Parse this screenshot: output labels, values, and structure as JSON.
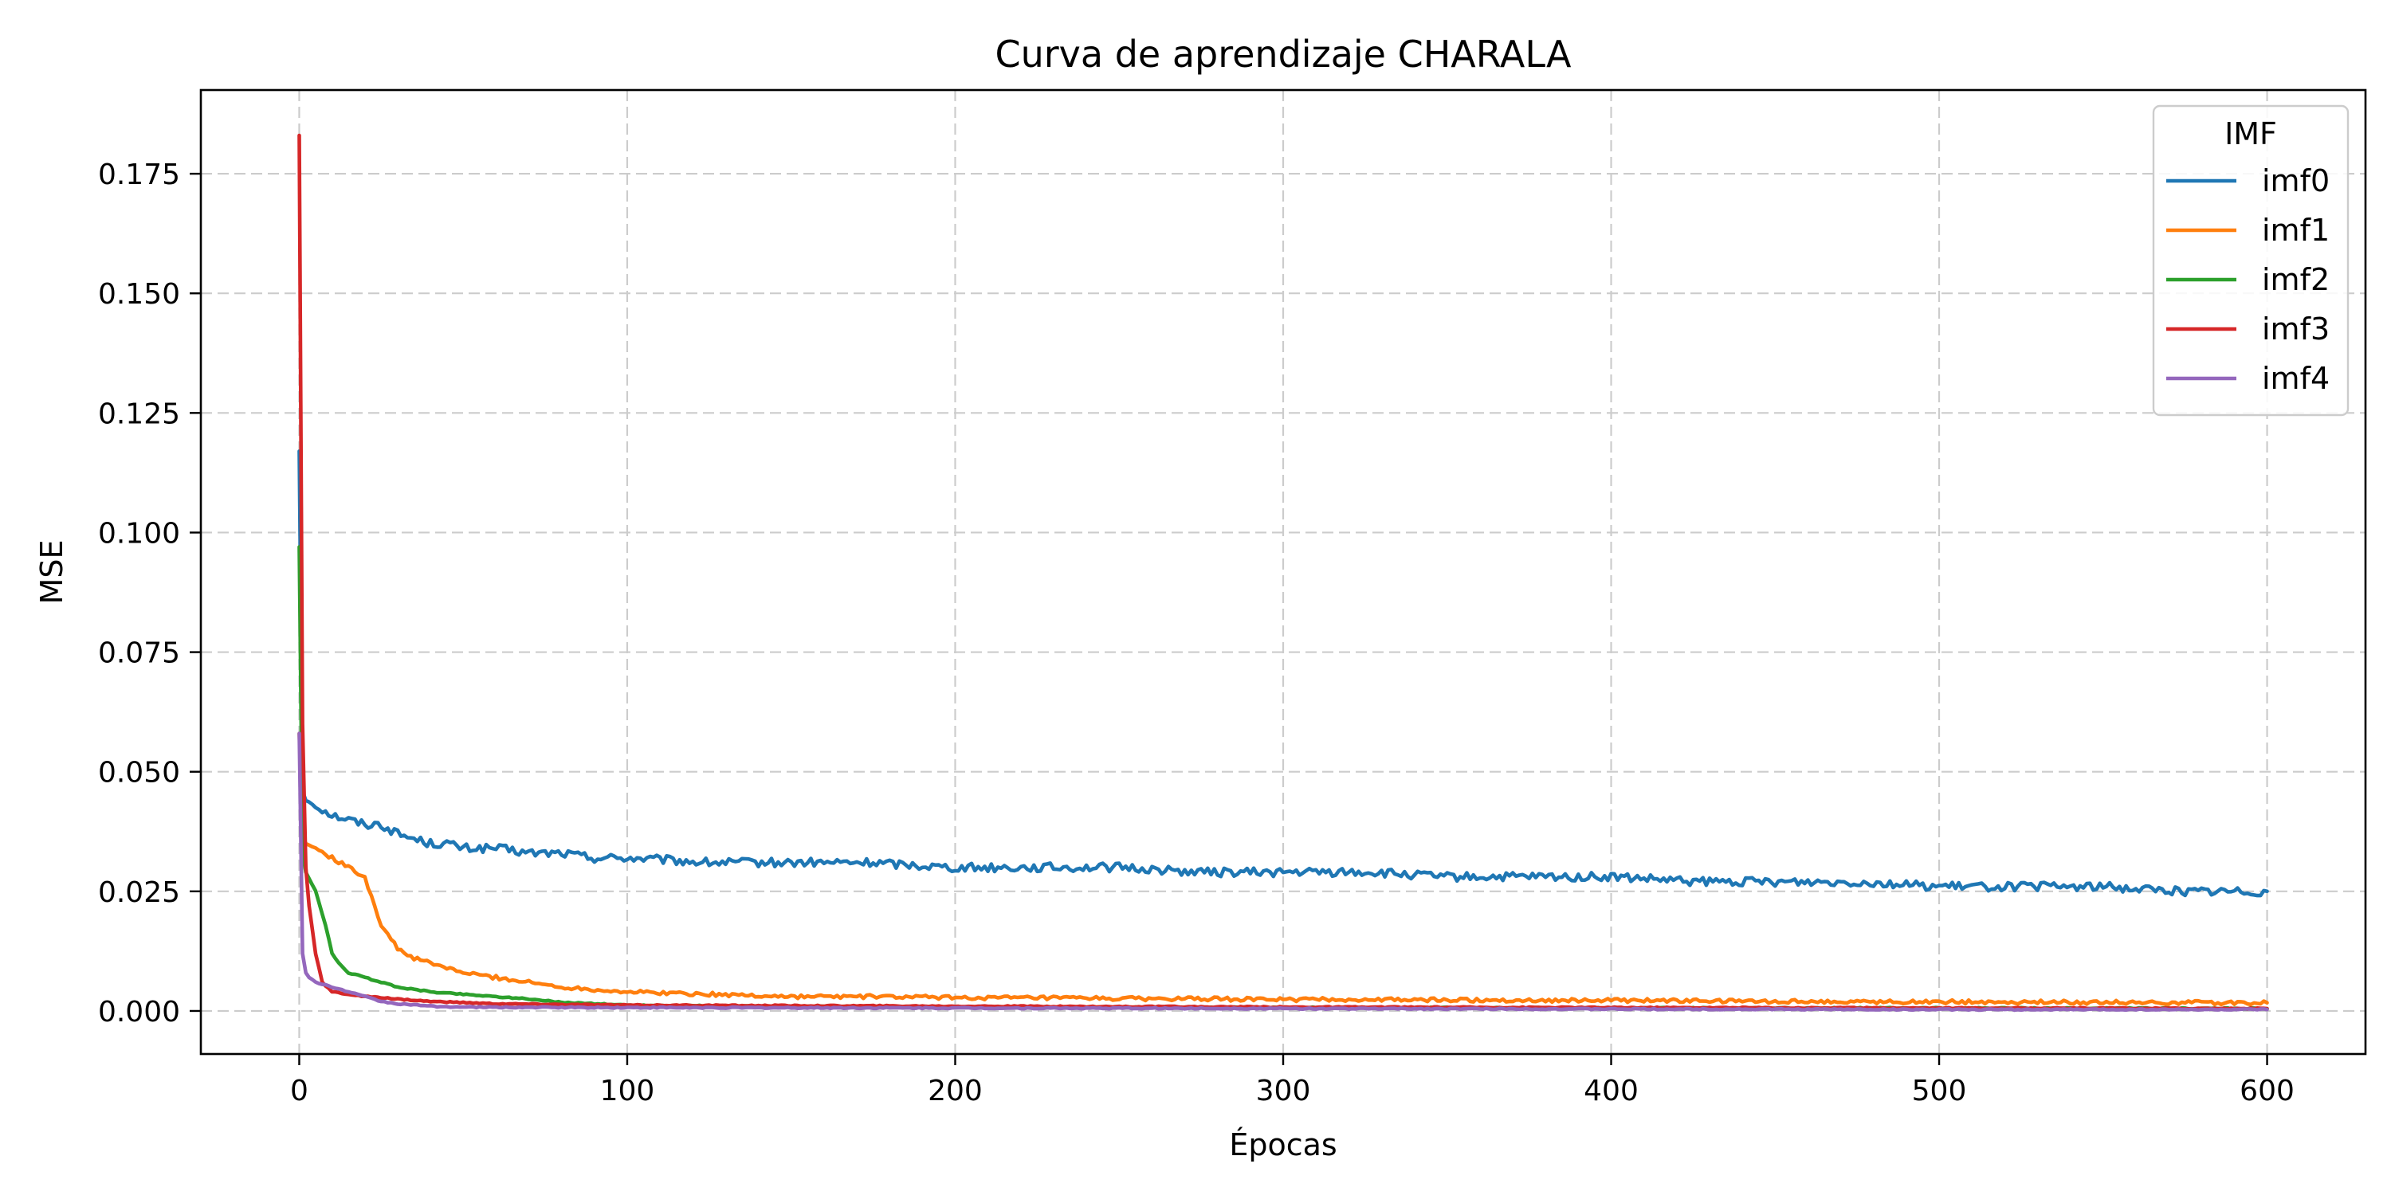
{
  "chart_data": {
    "type": "line",
    "title": "Curva de aprendizaje CHARALA",
    "xlabel": "Épocas",
    "ylabel": "MSE",
    "xlim": [
      -30,
      630
    ],
    "ylim": [
      -0.009,
      0.1925
    ],
    "x_ticks": [
      0,
      100,
      200,
      300,
      400,
      500,
      600
    ],
    "x_tick_labels": [
      "0",
      "100",
      "200",
      "300",
      "400",
      "500",
      "600"
    ],
    "y_ticks": [
      0.0,
      0.025,
      0.05,
      0.075,
      0.1,
      0.125,
      0.15,
      0.175
    ],
    "y_tick_labels": [
      "0.000",
      "0.025",
      "0.050",
      "0.075",
      "0.100",
      "0.125",
      "0.150",
      "0.175"
    ],
    "grid": true,
    "legend": {
      "title": "IMF",
      "placement": "top-right"
    },
    "series": [
      {
        "name": "imf0",
        "color": "#1f77b4",
        "x": [
          0,
          1,
          2,
          5,
          10,
          15,
          20,
          25,
          30,
          35,
          40,
          45,
          50,
          60,
          70,
          80,
          90,
          100,
          125,
          150,
          175,
          200,
          225,
          250,
          275,
          300,
          325,
          350,
          375,
          400,
          425,
          450,
          475,
          500,
          525,
          550,
          575,
          600
        ],
        "y": [
          0.117,
          0.046,
          0.044,
          0.043,
          0.041,
          0.04,
          0.039,
          0.039,
          0.037,
          0.036,
          0.035,
          0.035,
          0.034,
          0.034,
          0.033,
          0.033,
          0.032,
          0.032,
          0.031,
          0.031,
          0.031,
          0.03,
          0.03,
          0.03,
          0.029,
          0.029,
          0.029,
          0.028,
          0.028,
          0.028,
          0.027,
          0.027,
          0.027,
          0.026,
          0.026,
          0.026,
          0.025,
          0.025
        ]
      },
      {
        "name": "imf1",
        "color": "#ff7f0e",
        "x": [
          0,
          1,
          2,
          5,
          10,
          15,
          20,
          22,
          25,
          30,
          35,
          40,
          50,
          60,
          70,
          80,
          90,
          100,
          125,
          150,
          175,
          200,
          250,
          300,
          350,
          400,
          450,
          500,
          550,
          600
        ],
        "y": [
          0.058,
          0.037,
          0.035,
          0.034,
          0.032,
          0.03,
          0.028,
          0.024,
          0.018,
          0.013,
          0.011,
          0.01,
          0.008,
          0.007,
          0.006,
          0.005,
          0.0045,
          0.004,
          0.0035,
          0.003,
          0.003,
          0.0028,
          0.0026,
          0.0024,
          0.0023,
          0.0022,
          0.002,
          0.0019,
          0.0018,
          0.0017
        ]
      },
      {
        "name": "imf2",
        "color": "#2ca02c",
        "x": [
          0,
          1,
          2,
          5,
          8,
          10,
          12,
          15,
          20,
          25,
          30,
          40,
          50,
          60,
          70,
          80,
          100,
          150,
          200,
          300,
          400,
          500,
          600
        ],
        "y": [
          0.097,
          0.033,
          0.029,
          0.025,
          0.018,
          0.012,
          0.01,
          0.008,
          0.007,
          0.006,
          0.005,
          0.004,
          0.0035,
          0.003,
          0.0025,
          0.0018,
          0.0012,
          0.0009,
          0.0008,
          0.0007,
          0.0006,
          0.0006,
          0.0005
        ]
      },
      {
        "name": "imf3",
        "color": "#d62728",
        "x": [
          0,
          1,
          2,
          3,
          5,
          7,
          10,
          15,
          20,
          30,
          40,
          60,
          100,
          200,
          300,
          400,
          500,
          600
        ],
        "y": [
          0.183,
          0.06,
          0.03,
          0.022,
          0.012,
          0.006,
          0.004,
          0.0035,
          0.003,
          0.0025,
          0.002,
          0.0015,
          0.0012,
          0.001,
          0.0008,
          0.0007,
          0.0006,
          0.0005
        ]
      },
      {
        "name": "imf4",
        "color": "#9467bd",
        "x": [
          0,
          1,
          2,
          3,
          5,
          10,
          15,
          20,
          25,
          30,
          40,
          50,
          100,
          200,
          300,
          400,
          500,
          600
        ],
        "y": [
          0.058,
          0.012,
          0.008,
          0.007,
          0.006,
          0.005,
          0.004,
          0.003,
          0.002,
          0.0015,
          0.001,
          0.0008,
          0.0007,
          0.0006,
          0.0005,
          0.0004,
          0.0003,
          0.0003
        ]
      }
    ]
  }
}
